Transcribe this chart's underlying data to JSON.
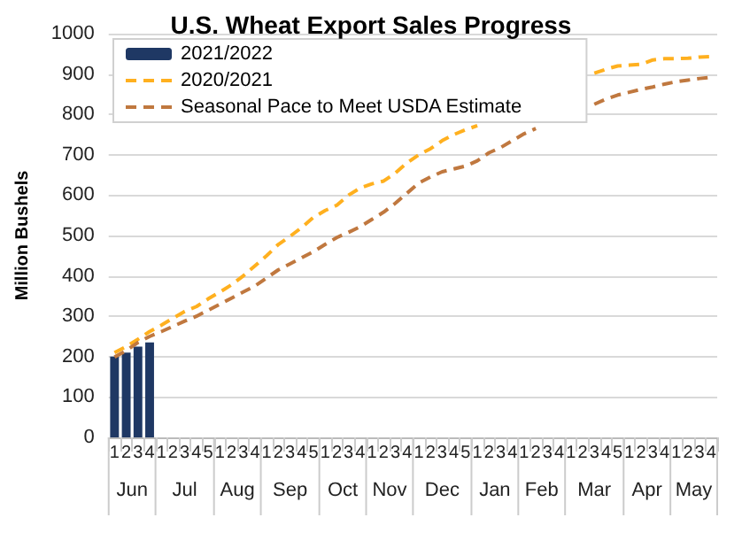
{
  "chart_data": {
    "type": "bar",
    "title": "U.S. Wheat Export Sales Progress",
    "ylabel": "Million Bushels",
    "categories": [
      "1",
      "2",
      "3",
      "4",
      "1",
      "2",
      "3",
      "4",
      "5",
      "1",
      "2",
      "3",
      "4",
      "1",
      "2",
      "3",
      "4",
      "5",
      "1",
      "2",
      "3",
      "4",
      "1",
      "2",
      "3",
      "4",
      "1",
      "2",
      "3",
      "4",
      "5",
      "1",
      "2",
      "3",
      "4",
      "1",
      "2",
      "3",
      "4",
      "1",
      "2",
      "3",
      "4",
      "5",
      "1",
      "2",
      "3",
      "4",
      "1",
      "2",
      "3",
      "4"
    ],
    "annotations": [
      "Jun",
      "Jul",
      "Aug",
      "Sep",
      "Oct",
      "Nov",
      "Dec",
      "Jan",
      "Feb",
      "Mar",
      "Apr",
      "May"
    ],
    "series": [
      {
        "name": "2021/2022",
        "type": "bar",
        "color": "#1f3864",
        "values": [
          200,
          210,
          225,
          235,
          null,
          null,
          null,
          null,
          null,
          null,
          null,
          null,
          null,
          null,
          null,
          null,
          null,
          null,
          null,
          null,
          null,
          null,
          null,
          null,
          null,
          null,
          null,
          null,
          null,
          null,
          null,
          null,
          null,
          null,
          null,
          null,
          null,
          null,
          null,
          null,
          null,
          null,
          null,
          null,
          null,
          null,
          null,
          null,
          null,
          null,
          null,
          null
        ]
      },
      {
        "name": "2020/2021",
        "type": "line",
        "line_style": "dashed",
        "color": "#ffb01f",
        "values": [
          210,
          225,
          243,
          262,
          278,
          295,
          312,
          324,
          343,
          360,
          378,
          400,
          425,
          450,
          478,
          498,
          520,
          545,
          562,
          575,
          600,
          618,
          628,
          635,
          655,
          680,
          700,
          715,
          735,
          750,
          762,
          772,
          null,
          null,
          null,
          null,
          null,
          null,
          null,
          null,
          null,
          902,
          912,
          920,
          922,
          924,
          935,
          938,
          938,
          939,
          942,
          943
        ]
      },
      {
        "name": "Seasonal Pace to Meet USDA Estimate",
        "type": "line",
        "line_style": "dashed",
        "color": "#c0783f",
        "values": [
          199,
          215,
          235,
          250,
          262,
          275,
          288,
          300,
          315,
          330,
          345,
          360,
          375,
          395,
          415,
          430,
          445,
          460,
          478,
          495,
          508,
          522,
          540,
          558,
          580,
          605,
          630,
          645,
          658,
          665,
          672,
          685,
          705,
          718,
          735,
          752,
          765,
          null,
          null,
          null,
          null,
          825,
          838,
          848,
          855,
          862,
          868,
          875,
          881,
          885,
          889,
          892
        ]
      }
    ],
    "ylim": [
      0,
      1000
    ],
    "yticks": [
      0,
      100,
      200,
      300,
      400,
      500,
      600,
      700,
      800,
      900,
      1000
    ],
    "grid": "y",
    "legend": "top",
    "marker": "none"
  }
}
